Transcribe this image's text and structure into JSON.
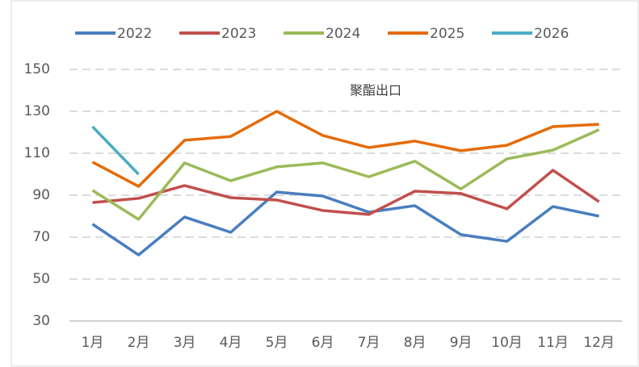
{
  "chart_data": {
    "type": "line",
    "title": "聚酯出口",
    "categories": [
      "1月",
      "2月",
      "3月",
      "4月",
      "5月",
      "6月",
      "7月",
      "8月",
      "9月",
      "10月",
      "11月",
      "12月"
    ],
    "series": [
      {
        "name": "2022",
        "color": "#4a7ebf",
        "values": [
          76.2,
          61.5,
          79.6,
          72.3,
          91.5,
          89.6,
          81.9,
          85,
          71.2,
          68,
          84.6,
          80
        ]
      },
      {
        "name": "2023",
        "color": "#c0504d",
        "values": [
          86.5,
          88.5,
          94.6,
          88.8,
          87.7,
          82.7,
          80.8,
          91.9,
          90.8,
          83.5,
          101.9,
          86.9
        ]
      },
      {
        "name": "2024",
        "color": "#9bbb59",
        "values": [
          92.3,
          78.5,
          105.4,
          96.9,
          103.5,
          105.4,
          98.8,
          106.2,
          93,
          107.3,
          111.5,
          121.2
        ]
      },
      {
        "name": "2025",
        "color": "#e46c0a",
        "values": [
          105.8,
          94.2,
          116.2,
          118,
          130,
          118.5,
          112.7,
          115.8,
          111.2,
          113.8,
          122.7,
          123.8
        ]
      },
      {
        "name": "2026",
        "color": "#4bacc6",
        "values": [
          122.7,
          100,
          null,
          null,
          null,
          null,
          null,
          null,
          null,
          null,
          null,
          null
        ]
      }
    ],
    "ylim": [
      30,
      170
    ],
    "yticks": [
      30,
      50,
      70,
      90,
      110,
      130,
      150
    ],
    "grid": true,
    "legend": "top"
  }
}
